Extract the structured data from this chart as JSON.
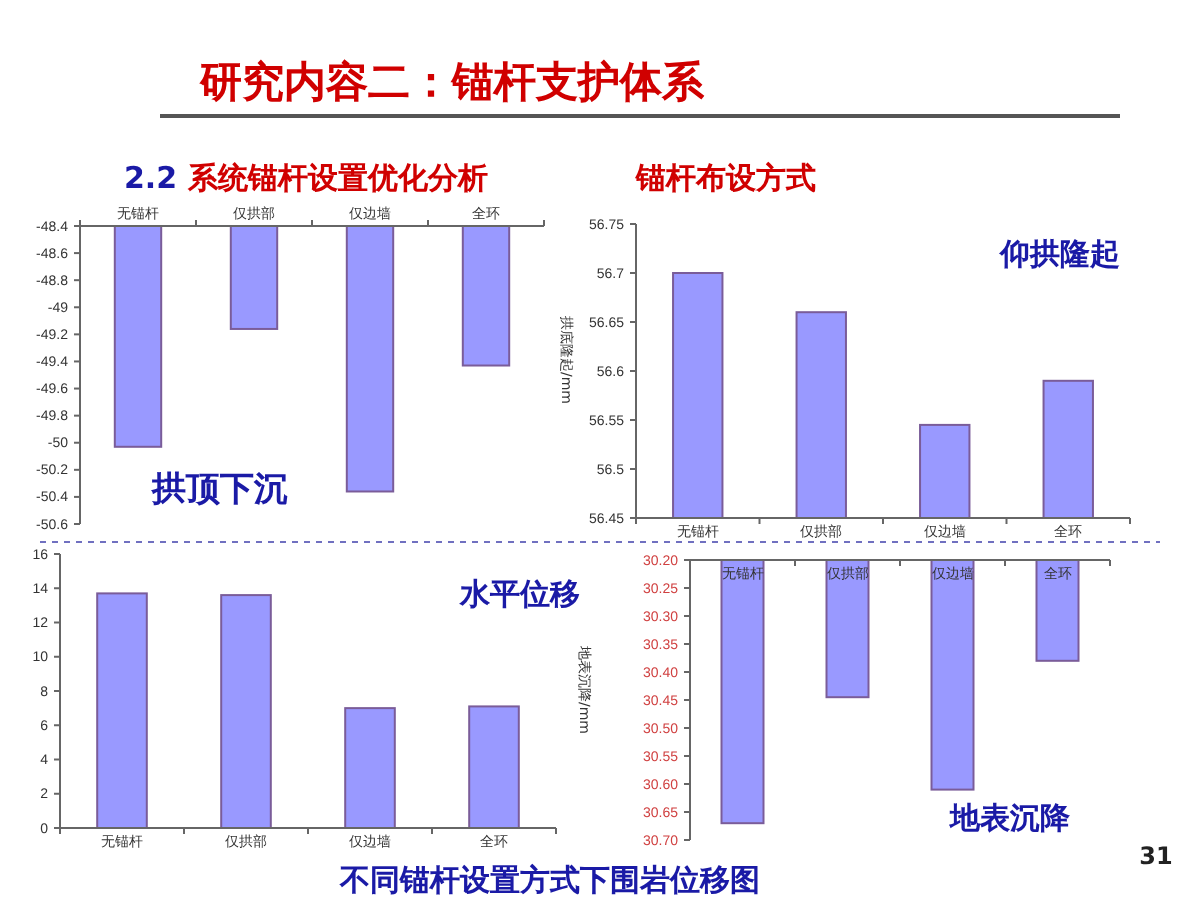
{
  "chart_data": [
    {
      "type": "bar",
      "title": "研究内容二：锚杆支护体系",
      "subtitle": "2.2 系统锚杆设置优化分析",
      "categories": [
        "无锚杆",
        "仅拱部",
        "仅边墙",
        "全环"
      ],
      "series": [
        {
          "color": "#9999ff",
          "values": [
            -50.03,
            -49.16,
            -50.36,
            -49.43
          ]
        }
      ],
      "ylim": [
        -50.6,
        -48.4
      ],
      "yticks": [
        -48.4,
        -48.6,
        -48.8,
        -49,
        -49.2,
        -49.4,
        -49.6,
        -49.8,
        -50,
        -50.2,
        -50.4,
        -50.6
      ],
      "annotations": [
        "拱顶下沉"
      ]
    },
    {
      "type": "bar",
      "title": "锚杆布设方式",
      "ylabel": "拱底隆起/mm",
      "categories": [
        "无锚杆",
        "仅拱部",
        "仅边墙",
        "全环"
      ],
      "series": [
        {
          "color": "#9999ff",
          "values": [
            56.7,
            56.66,
            56.545,
            56.59
          ]
        }
      ],
      "ylim": [
        56.45,
        56.75
      ],
      "yticks": [
        56.45,
        56.5,
        56.55,
        56.6,
        56.65,
        56.7,
        56.75
      ],
      "annotations": [
        "仰拱隆起"
      ]
    },
    {
      "type": "bar",
      "categories": [
        "无锚杆",
        "仅拱部",
        "仅边墙",
        "全环"
      ],
      "series": [
        {
          "color": "#9999ff",
          "values": [
            13.7,
            13.6,
            7.0,
            7.1
          ]
        }
      ],
      "ylim": [
        0,
        16
      ],
      "yticks": [
        0,
        2,
        4,
        6,
        8,
        10,
        12,
        14,
        16
      ],
      "annotations": [
        "水平位移"
      ]
    },
    {
      "type": "bar",
      "ylabel": "地表沉降/mm",
      "categories": [
        "无锚杆",
        "仅拱部",
        "仅边墙",
        "全环"
      ],
      "series": [
        {
          "color": "#9999ff",
          "values": [
            30.67,
            30.445,
            30.61,
            30.38
          ]
        }
      ],
      "ylim": [
        30.7,
        30.2
      ],
      "yticks": [
        {
          "value": 30.2,
          "label": "30.20"
        },
        {
          "value": 30.25,
          "label": "30.25"
        },
        {
          "value": 30.3,
          "label": "30.30"
        },
        {
          "value": 30.35,
          "label": "30.35"
        },
        {
          "value": 30.4,
          "label": "30.40"
        },
        {
          "value": 30.45,
          "label": "30.45"
        },
        {
          "value": 30.5,
          "label": "30.50"
        },
        {
          "value": 30.55,
          "label": "30.55"
        },
        {
          "value": 30.6,
          "label": "30.60"
        },
        {
          "value": 30.65,
          "label": "30.65"
        },
        {
          "value": 30.7,
          "label": "30.70"
        }
      ],
      "annotations": [
        "地表沉降",
        "不同锚杆设置方式下围岩位移图",
        "31"
      ]
    }
  ]
}
